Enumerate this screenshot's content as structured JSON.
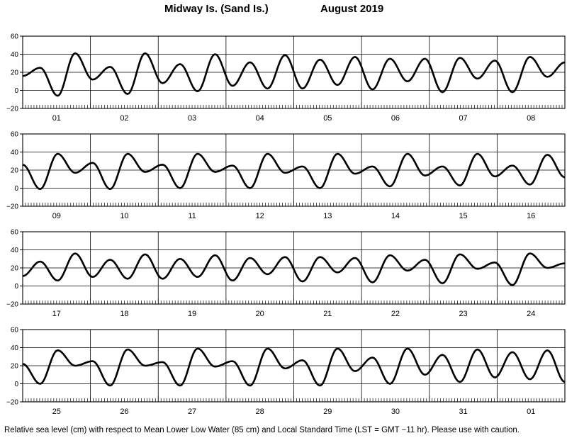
{
  "header": {
    "station": "Midway Is. (Sand Is.)",
    "period": "August   2019"
  },
  "footer": {
    "note": "Relative sea level (cm) with respect to Mean Lower Low Water (85 cm) and Local Standard Time (LST = GMT −11 hr). Please use with caution."
  },
  "chart_data": {
    "type": "line",
    "ylim": [
      -20,
      60
    ],
    "yticks": [
      "60",
      "40",
      "20",
      "0",
      "−20"
    ],
    "grid": "horizontal lines at 40, 20 and 0 cm; vertical lines at day boundaries",
    "panels": [
      {
        "day_labels": [
          "01",
          "02",
          "03",
          "04",
          "05",
          "06",
          "07",
          "08"
        ],
        "series": [
          {
            "values": [
              16,
              25,
              -6,
              41,
              12,
              26,
              -4,
              41,
              8,
              29,
              -1,
              40,
              5,
              31,
              2,
              39,
              2,
              34,
              6,
              37,
              1,
              35,
              10,
              35,
              -2,
              36,
              13,
              33,
              -2,
              37,
              15,
              31
            ]
          }
        ]
      },
      {
        "day_labels": [
          "09",
          "10",
          "11",
          "12",
          "13",
          "14",
          "15",
          "16"
        ],
        "series": [
          {
            "values": [
              26,
              -1,
              38,
              17,
              28,
              -1,
              38,
              18,
              26,
              0,
              38,
              18,
              25,
              0,
              38,
              17,
              24,
              0,
              38,
              16,
              24,
              2,
              38,
              14,
              24,
              3,
              38,
              13,
              25,
              4,
              37,
              12
            ]
          }
        ]
      },
      {
        "day_labels": [
          "17",
          "18",
          "19",
          "20",
          "21",
          "22",
          "23",
          "24"
        ],
        "series": [
          {
            "values": [
              11,
              27,
              6,
              36,
              10,
              29,
              8,
              35,
              8,
              30,
              10,
              34,
              6,
              31,
              13,
              32,
              5,
              32,
              15,
              31,
              4,
              34,
              17,
              29,
              3,
              35,
              19,
              26,
              1,
              36,
              20,
              25
            ]
          }
        ]
      },
      {
        "day_labels": [
          "25",
          "26",
          "27",
          "28",
          "29",
          "30",
          "31",
          "01"
        ],
        "series": [
          {
            "values": [
              22,
              0,
              37,
              20,
              25,
              -2,
              38,
              20,
              24,
              -2,
              39,
              19,
              25,
              -2,
              39,
              17,
              26,
              -2,
              39,
              14,
              29,
              0,
              39,
              10,
              32,
              2,
              38,
              7,
              35,
              5,
              37,
              2
            ]
          }
        ]
      }
    ]
  }
}
